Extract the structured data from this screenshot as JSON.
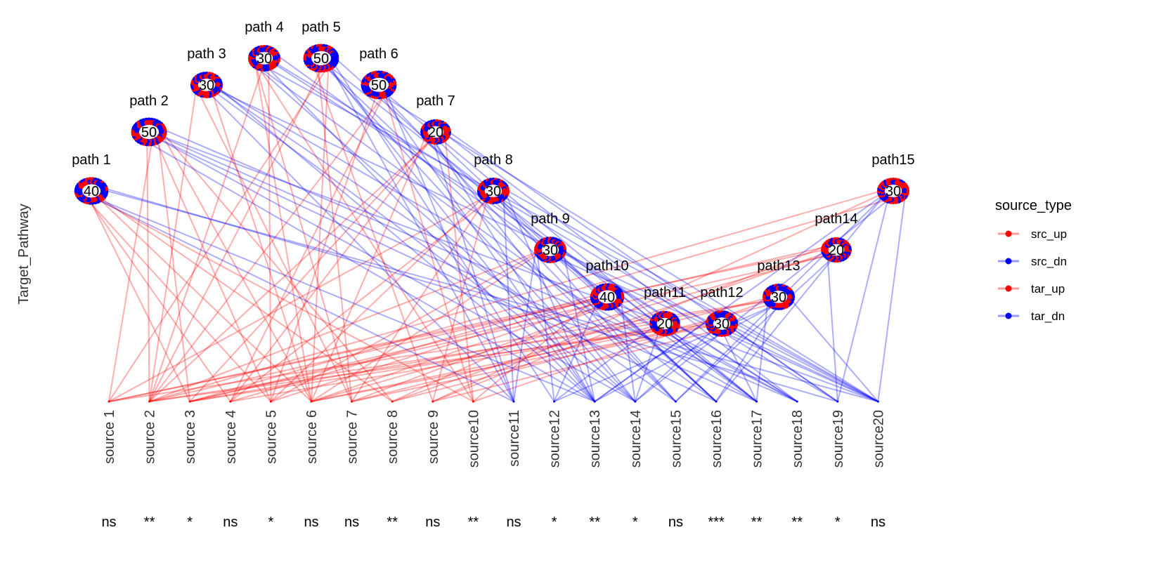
{
  "chart_data": {
    "type": "network",
    "ylabel": "Target_Pathway",
    "legend": {
      "title": "source_type",
      "position": "right",
      "items": [
        {
          "label": "src_up",
          "color": "#ff0000"
        },
        {
          "label": "src_dn",
          "color": "#0000ff"
        },
        {
          "label": "tar_up",
          "color": "#ff0000"
        },
        {
          "label": "tar_dn",
          "color": "#0000ff"
        }
      ]
    },
    "sources": [
      {
        "label": "source 1",
        "signif": "ns",
        "type": "src_up"
      },
      {
        "label": "source 2",
        "signif": "**",
        "type": "src_up"
      },
      {
        "label": "source 3",
        "signif": "*",
        "type": "src_up"
      },
      {
        "label": "source 4",
        "signif": "ns",
        "type": "src_up"
      },
      {
        "label": "source 5",
        "signif": "*",
        "type": "src_up"
      },
      {
        "label": "source 6",
        "signif": "ns",
        "type": "src_up"
      },
      {
        "label": "source 7",
        "signif": "ns",
        "type": "src_up"
      },
      {
        "label": "source 8",
        "signif": "**",
        "type": "src_up"
      },
      {
        "label": "source 9",
        "signif": "ns",
        "type": "src_up"
      },
      {
        "label": "source10",
        "signif": "**",
        "type": "src_up"
      },
      {
        "label": "source11",
        "signif": "ns",
        "type": "src_dn"
      },
      {
        "label": "source12",
        "signif": "*",
        "type": "src_dn"
      },
      {
        "label": "source13",
        "signif": "**",
        "type": "src_dn"
      },
      {
        "label": "source14",
        "signif": "*",
        "type": "src_dn"
      },
      {
        "label": "source15",
        "signif": "ns",
        "type": "src_dn"
      },
      {
        "label": "source16",
        "signif": "***",
        "type": "src_dn"
      },
      {
        "label": "source17",
        "signif": "**",
        "type": "src_dn"
      },
      {
        "label": "source18",
        "signif": "**",
        "type": "src_dn"
      },
      {
        "label": "source19",
        "signif": "*",
        "type": "src_dn"
      },
      {
        "label": "source20",
        "signif": "ns",
        "type": "src_dn"
      }
    ],
    "pathways": [
      {
        "label": "path 1",
        "count": 40
      },
      {
        "label": "path 2",
        "count": 50
      },
      {
        "label": "path 3",
        "count": 30
      },
      {
        "label": "path 4",
        "count": 30
      },
      {
        "label": "path 5",
        "count": 50
      },
      {
        "label": "path 6",
        "count": 50
      },
      {
        "label": "path 7",
        "count": 20
      },
      {
        "label": "path 8",
        "count": 30
      },
      {
        "label": "path 9",
        "count": 30
      },
      {
        "label": "path10",
        "count": 40
      },
      {
        "label": "path11",
        "count": 20
      },
      {
        "label": "path12",
        "count": 30
      },
      {
        "label": "path13",
        "count": 30
      },
      {
        "label": "path14",
        "count": 20
      },
      {
        "label": "path15",
        "count": 30
      }
    ]
  }
}
